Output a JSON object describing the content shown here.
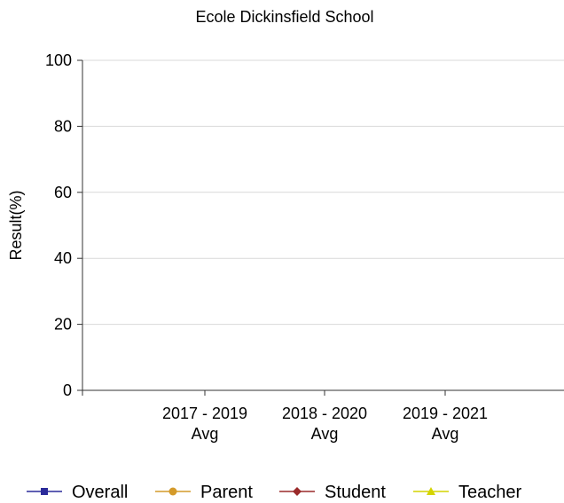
{
  "chart_data": {
    "type": "line",
    "title": "Ecole Dickinsfield School",
    "xlabel": "",
    "ylabel": "Result(%)",
    "ylim": [
      0,
      100
    ],
    "yticks": [
      0,
      20,
      40,
      60,
      80,
      100
    ],
    "categories": [
      [
        "2017 - 2019",
        "Avg"
      ],
      [
        "2018 - 2020",
        "Avg"
      ],
      [
        "2019 - 2021",
        "Avg"
      ]
    ],
    "grid": true,
    "legend_position": "bottom",
    "series": [
      {
        "name": "Overall",
        "values": [
          null,
          null,
          null
        ],
        "color": "#2b2b9a",
        "marker": "square"
      },
      {
        "name": "Parent",
        "values": [
          null,
          null,
          null
        ],
        "color": "#d49a2a",
        "marker": "circle"
      },
      {
        "name": "Student",
        "values": [
          null,
          null,
          null
        ],
        "color": "#9a2a2a",
        "marker": "diamond"
      },
      {
        "name": "Teacher",
        "values": [
          null,
          null,
          null
        ],
        "color": "#d4d400",
        "marker": "triangle"
      }
    ]
  }
}
